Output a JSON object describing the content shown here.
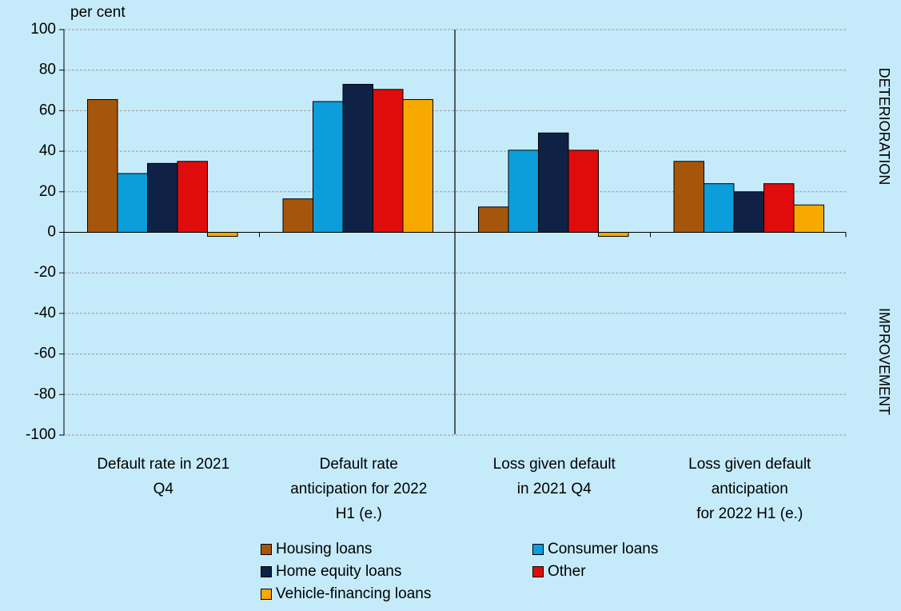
{
  "chart_data": {
    "type": "bar",
    "ylabel": "per cent",
    "ylim": [
      -100,
      100
    ],
    "yticks": [
      100,
      80,
      60,
      40,
      20,
      0,
      -20,
      -40,
      -60,
      -80,
      -100
    ],
    "categories": [
      [
        "Default rate in 2021",
        "Q4"
      ],
      [
        "Default rate",
        "anticipation for 2022",
        "H1 (e.)"
      ],
      [
        "Loss given default",
        "in 2021 Q4"
      ],
      [
        "Loss given default",
        "anticipation",
        "for 2022 H1 (e.)"
      ]
    ],
    "series": [
      {
        "name": "Housing loans",
        "color": "#a6560a",
        "values": [
          65.5,
          16.5,
          12.5,
          35
        ]
      },
      {
        "name": "Consumer loans",
        "color": "#0b9edb",
        "values": [
          29,
          64.5,
          40.5,
          24
        ]
      },
      {
        "name": "Home equity loans",
        "color": "#0f2246",
        "values": [
          34,
          73,
          49,
          20
        ]
      },
      {
        "name": "Other",
        "color": "#e00b0b",
        "values": [
          35,
          70.5,
          40.5,
          24
        ]
      },
      {
        "name": "Vehicle-financing loans",
        "color": "#f8a900",
        "values": [
          -2,
          65.5,
          -2,
          13.5
        ]
      }
    ],
    "side_labels": {
      "top": "DETERIORATION",
      "bottom": "IMPROVEMENT"
    },
    "grid": true,
    "legend_position": "bottom"
  }
}
